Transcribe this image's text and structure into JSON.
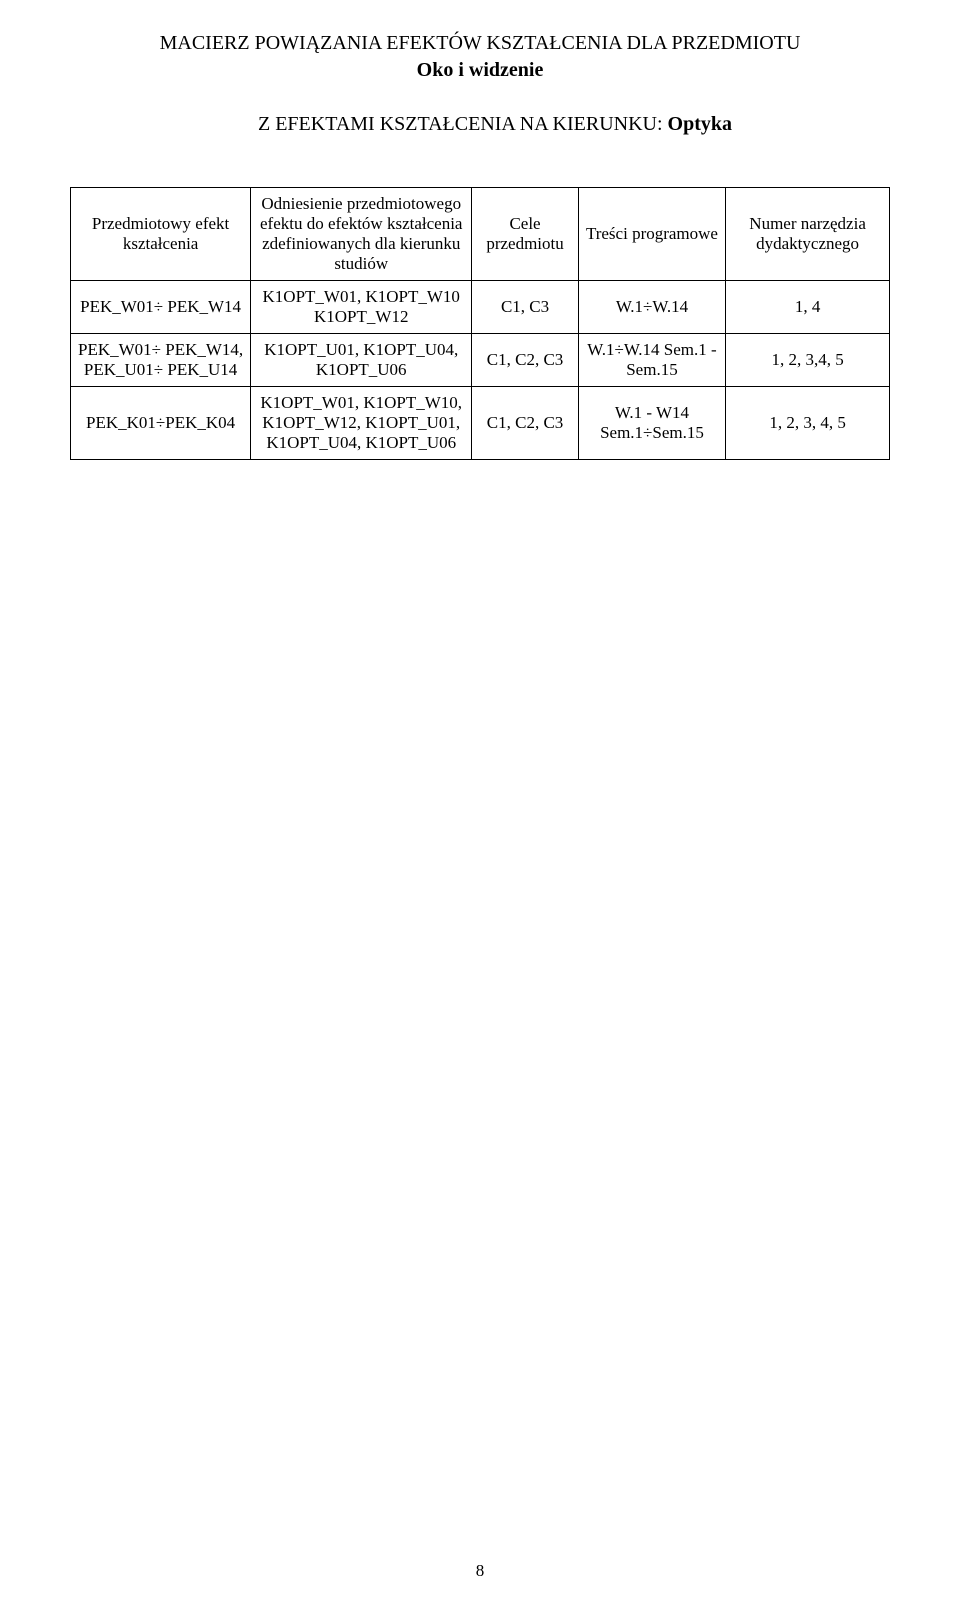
{
  "title": {
    "line1": "MACIERZ POWIĄZANIA EFEKTÓW KSZTAŁCENIA DLA PRZEDMIOTU",
    "line2_bold": "Oko i widzenie",
    "line3_prefix": "Z EFEKTAMI KSZTAŁCENIA NA KIERUNKU: ",
    "line3_bold": "Optyka"
  },
  "columns": {
    "c1": "Przedmiotowy efekt kształcenia",
    "c2": "Odniesienie przedmiotowego efektu do efektów kształcenia zdefiniowanych dla kierunku studiów",
    "c3": "Cele przedmiotu",
    "c4": "Treści programowe",
    "c5": "Numer narzędzia dydaktycznego"
  },
  "rows": [
    {
      "c1": "PEK_W01÷ PEK_W14",
      "c2": "K1OPT_W01, K1OPT_W10 K1OPT_W12",
      "c3": "C1, C3",
      "c4": "W.1÷W.14",
      "c5": "1, 4"
    },
    {
      "c1": "PEK_W01÷ PEK_W14, PEK_U01÷ PEK_U14",
      "c2": "K1OPT_U01, K1OPT_U04, K1OPT_U06",
      "c3": "C1, C2, C3",
      "c4": "W.1÷W.14 Sem.1 - Sem.15",
      "c5": "1, 2, 3,4, 5"
    },
    {
      "c1": "PEK_K01÷PEK_K04",
      "c2": "K1OPT_W01, K1OPT_W10, K1OPT_W12, K1OPT_U01, K1OPT_U04, K1OPT_U06",
      "c3": "C1, C2, C3",
      "c4": "W.1 - W14 Sem.1÷Sem.15",
      "c5": "1, 2, 3, 4, 5"
    }
  ],
  "pageNumber": "8"
}
